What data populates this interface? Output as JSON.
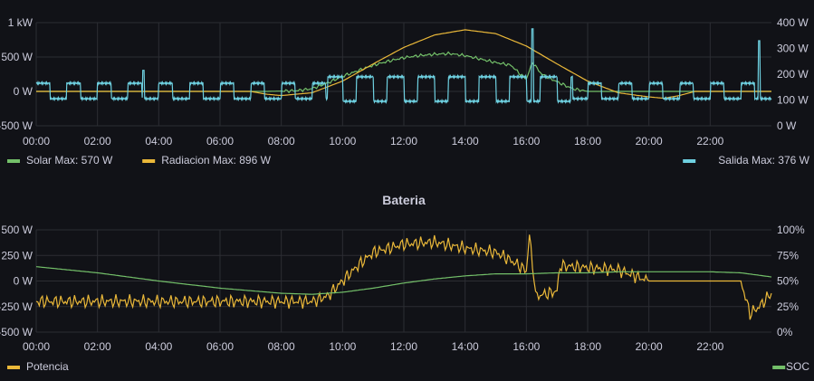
{
  "colors": {
    "background": "#111217",
    "grid": "#2c2d33",
    "solar": "#73bf69",
    "radiacion": "#eab839",
    "salida": "#6ed0e0",
    "potencia": "#eab839",
    "soc": "#73bf69",
    "text": "#ccccdc"
  },
  "chart_data": [
    {
      "type": "line",
      "title": "",
      "x_ticks": [
        "00:00",
        "02:00",
        "04:00",
        "06:00",
        "08:00",
        "10:00",
        "12:00",
        "14:00",
        "16:00",
        "18:00",
        "20:00",
        "22:00"
      ],
      "x_range_hours": [
        0,
        24
      ],
      "left_axis": {
        "ticks": [
          "1 kW",
          "500 W",
          "0 W",
          "-500 W"
        ],
        "ylim": [
          -500,
          1000
        ],
        "unit": "W"
      },
      "right_axis": {
        "ticks": [
          "400 W",
          "300 W",
          "200 W",
          "100 W",
          "0 W"
        ],
        "ylim": [
          0,
          400
        ],
        "unit": "W"
      },
      "series": [
        {
          "name": "Solar",
          "axis": "left",
          "color": "#73bf69",
          "legend_stat": "Max: 570 W",
          "points": [
            [
              0,
              0
            ],
            [
              7.5,
              0
            ],
            [
              8.5,
              10
            ],
            [
              9,
              40
            ],
            [
              9.5,
              120
            ],
            [
              10,
              220
            ],
            [
              10.5,
              300
            ],
            [
              11,
              380
            ],
            [
              11.5,
              440
            ],
            [
              12,
              490
            ],
            [
              12.5,
              520
            ],
            [
              13,
              540
            ],
            [
              13.5,
              550
            ],
            [
              14,
              520
            ],
            [
              14.5,
              470
            ],
            [
              15,
              420
            ],
            [
              15.5,
              380
            ],
            [
              15.8,
              250
            ],
            [
              16,
              180
            ],
            [
              16.2,
              420
            ],
            [
              16.5,
              250
            ],
            [
              17,
              140
            ],
            [
              17.5,
              40
            ],
            [
              18,
              0
            ],
            [
              24,
              0
            ]
          ]
        },
        {
          "name": "Radiacion",
          "axis": "left",
          "color": "#eab839",
          "legend_stat": "Max: 896 W",
          "points": [
            [
              0,
              0
            ],
            [
              7,
              0
            ],
            [
              7.5,
              -40
            ],
            [
              8,
              -60
            ],
            [
              9,
              -20
            ],
            [
              10,
              150
            ],
            [
              11,
              400
            ],
            [
              12,
              640
            ],
            [
              13,
              820
            ],
            [
              14,
              896
            ],
            [
              15,
              840
            ],
            [
              16,
              660
            ],
            [
              17,
              400
            ],
            [
              18,
              150
            ],
            [
              19,
              -20
            ],
            [
              20,
              -80
            ],
            [
              20.5,
              -100
            ],
            [
              21,
              -60
            ],
            [
              21.5,
              0
            ],
            [
              24,
              0
            ]
          ]
        },
        {
          "name": "Salida",
          "axis": "right",
          "color": "#6ed0e0",
          "legend_stat": "Max: 376 W",
          "base": 105,
          "peak": 165,
          "period_hours": 1.0,
          "duty": 0.45,
          "active_start": 9.5,
          "active_end": 17.5,
          "spikes": [
            [
              3.5,
              215
            ],
            [
              16.2,
              376
            ],
            [
              23.6,
              330
            ]
          ]
        }
      ],
      "legend_left": [
        {
          "name": "Solar",
          "stat": "Max: 570 W",
          "color": "#73bf69"
        },
        {
          "name": "Radiacion",
          "stat": "Max: 896 W",
          "color": "#eab839"
        }
      ],
      "legend_right": [
        {
          "name": "Salida",
          "stat": "Max: 376 W",
          "color": "#6ed0e0"
        }
      ]
    },
    {
      "type": "line",
      "title": "Bateria",
      "x_ticks": [
        "00:00",
        "02:00",
        "04:00",
        "06:00",
        "08:00",
        "10:00",
        "12:00",
        "14:00",
        "16:00",
        "18:00",
        "20:00",
        "22:00"
      ],
      "x_range_hours": [
        0,
        24
      ],
      "left_axis": {
        "ticks": [
          "500 W",
          "250 W",
          "0 W",
          "-250 W",
          "-500 W"
        ],
        "ylim": [
          -500,
          500
        ],
        "unit": "W"
      },
      "right_axis": {
        "ticks": [
          "100%",
          "75%",
          "50%",
          "25%",
          "0%"
        ],
        "ylim": [
          0,
          100
        ],
        "unit": "%"
      },
      "series": [
        {
          "name": "Potencia",
          "axis": "left",
          "color": "#eab839",
          "points": [
            [
              0,
              -200
            ],
            [
              9,
              -200
            ],
            [
              9.5,
              -150
            ],
            [
              10,
              0
            ],
            [
              10.5,
              150
            ],
            [
              11,
              280
            ],
            [
              12,
              360
            ],
            [
              13,
              380
            ],
            [
              14,
              320
            ],
            [
              15,
              280
            ],
            [
              15.5,
              200
            ],
            [
              16,
              100
            ],
            [
              16.1,
              450
            ],
            [
              16.3,
              -150
            ],
            [
              17,
              -100
            ],
            [
              17.1,
              150
            ],
            [
              18,
              130
            ],
            [
              19,
              110
            ],
            [
              20,
              0
            ],
            [
              23,
              0
            ],
            [
              23.3,
              -320
            ],
            [
              23.6,
              -250
            ],
            [
              24,
              -120
            ]
          ]
        },
        {
          "name": "SOC",
          "axis": "right",
          "color": "#73bf69",
          "points": [
            [
              0,
              64
            ],
            [
              2,
              58
            ],
            [
              4,
              50
            ],
            [
              6,
              43
            ],
            [
              8,
              38
            ],
            [
              9,
              37
            ],
            [
              10,
              39
            ],
            [
              11,
              43
            ],
            [
              12,
              48
            ],
            [
              13,
              52
            ],
            [
              14,
              55
            ],
            [
              15,
              57
            ],
            [
              16,
              57
            ],
            [
              17,
              58
            ],
            [
              18,
              58
            ],
            [
              19,
              59
            ],
            [
              20,
              59
            ],
            [
              22,
              59
            ],
            [
              23,
              58
            ],
            [
              24,
              54
            ]
          ]
        }
      ],
      "legend_left": [
        {
          "name": "Potencia",
          "stat": "",
          "color": "#eab839"
        }
      ],
      "legend_right": [
        {
          "name": "SOC",
          "stat": "",
          "color": "#73bf69"
        }
      ]
    }
  ]
}
